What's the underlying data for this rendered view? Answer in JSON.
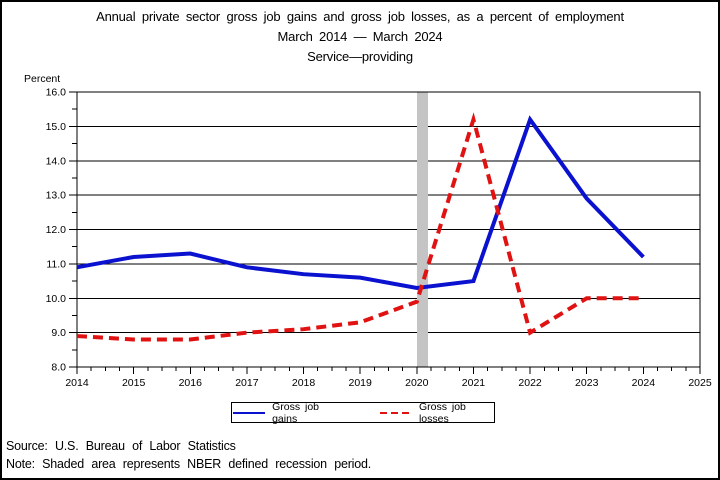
{
  "titles": {
    "line1": "Annual private sector gross job gains and gross job losses, as a percent of employment",
    "line2": "March 2014 — March 2024",
    "line3": "Service—providing"
  },
  "footer": {
    "source": "Source: U.S. Bureau of Labor Statistics",
    "note": "Note: Shaded area represents NBER defined recession period."
  },
  "legend": {
    "items": [
      {
        "label": "Gross job gains",
        "color": "#0b12cf",
        "style": "solid"
      },
      {
        "label": "Gross job losses",
        "color": "#e01212",
        "style": "dashed"
      }
    ]
  },
  "chart_data": {
    "type": "line",
    "title": "Annual private sector gross job gains and gross job losses, as a percent of employment",
    "subtitle1": "March 2014 — March 2024",
    "subtitle2": "Service—providing",
    "ylabel": "Percent",
    "grid": "horizontal-major",
    "legend_position": "bottom",
    "x_axis": {
      "min": 2014,
      "max": 2025,
      "tick_labels": [
        "2014",
        "2015",
        "2016",
        "2017",
        "2018",
        "2019",
        "2020",
        "2021",
        "2022",
        "2023",
        "2024",
        "2025"
      ],
      "minor_divisions_per_year": 4
    },
    "y_axis": {
      "min": 8,
      "max": 16,
      "major_step": 1,
      "minor_step": 0.5,
      "tick_labels": [
        "8.0",
        "9.0",
        "10.0",
        "11.0",
        "12.0",
        "13.0",
        "14.0",
        "15.0",
        "16.0"
      ]
    },
    "recession_band": {
      "x_start": 2020.0,
      "x_end": 2020.2,
      "color": "#c4c4c4"
    },
    "x": [
      2014,
      2015,
      2016,
      2017,
      2018,
      2019,
      2020,
      2021,
      2022,
      2023,
      2024
    ],
    "series": [
      {
        "name": "Gross job gains",
        "color": "#0b12cf",
        "style": "solid",
        "values": [
          10.9,
          11.2,
          11.3,
          10.9,
          10.7,
          10.6,
          10.3,
          10.5,
          15.2,
          12.9,
          11.2
        ]
      },
      {
        "name": "Gross job losses",
        "color": "#e01212",
        "style": "dashed",
        "values": [
          8.9,
          8.8,
          8.8,
          9.0,
          9.1,
          9.3,
          9.9,
          15.2,
          9.0,
          10.0,
          10.0
        ]
      }
    ]
  }
}
